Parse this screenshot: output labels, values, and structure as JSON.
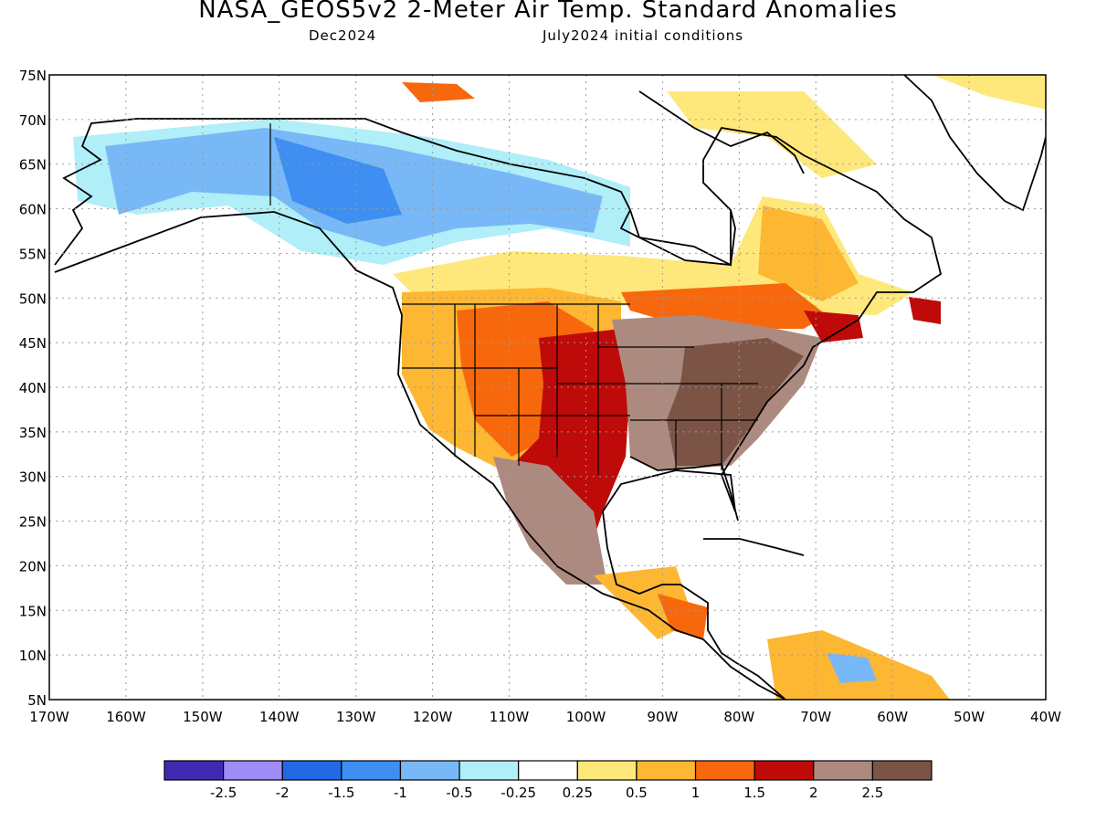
{
  "title": "NASA_GEOS5v2 2-Meter Air Temp. Standard Anomalies",
  "subtitle_left": "Dec2024",
  "subtitle_right": "July2024 initial conditions",
  "axes": {
    "lon_ticks": [
      "170W",
      "160W",
      "150W",
      "140W",
      "130W",
      "120W",
      "110W",
      "100W",
      "90W",
      "80W",
      "70W",
      "60W",
      "50W",
      "40W"
    ],
    "lat_ticks": [
      "75N",
      "70N",
      "65N",
      "60N",
      "55N",
      "50N",
      "45N",
      "40N",
      "35N",
      "30N",
      "25N",
      "20N",
      "15N",
      "10N",
      "5N"
    ],
    "lon_range": [
      -170,
      -40
    ],
    "lat_range": [
      5,
      75
    ],
    "grid": "dotted"
  },
  "colorbar": {
    "colors": [
      "#3f2bb3",
      "#9f8cf7",
      "#2368e6",
      "#3f8ef2",
      "#78b8f6",
      "#b0eef8",
      "#ffffff",
      "#fee87b",
      "#fdb733",
      "#f7680d",
      "#be0a08",
      "#ad8a7f",
      "#7b5446"
    ],
    "labels": [
      "-2.5",
      "-2",
      "-1.5",
      "-1",
      "-0.5",
      "-0.25",
      "0.25",
      "0.5",
      "1",
      "1.5",
      "2",
      "2.5"
    ]
  },
  "palette": {
    "ocean": "#ffffff",
    "coast": "#000000",
    "grid": "#9a9a9a"
  }
}
